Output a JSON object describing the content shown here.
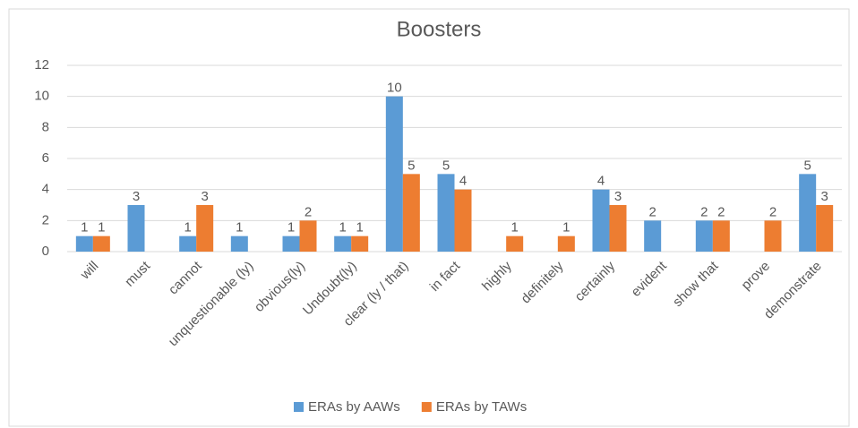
{
  "chart_data": {
    "type": "bar",
    "title": "Boosters",
    "categories": [
      "will",
      "must",
      "cannot",
      "unquestionable (ly)",
      "obvious(ly)",
      "Undoubt(ly)",
      "clear (ly / that)",
      "in fact",
      "highly",
      "definitely",
      "certainly",
      "evident",
      "show that",
      "prove",
      "demonstrate"
    ],
    "series": [
      {
        "name": "ERAs by AAWs",
        "color": "#5b9bd5",
        "values": [
          1,
          3,
          1,
          1,
          1,
          1,
          10,
          5,
          null,
          null,
          4,
          2,
          2,
          null,
          5
        ]
      },
      {
        "name": "ERAs by TAWs",
        "color": "#ed7d31",
        "values": [
          1,
          null,
          3,
          null,
          2,
          1,
          5,
          4,
          1,
          1,
          3,
          null,
          2,
          2,
          3
        ]
      }
    ],
    "ylim": [
      0,
      12
    ],
    "yticks": [
      0,
      2,
      4,
      6,
      8,
      10,
      12
    ],
    "grid": true,
    "legend": "bottom"
  }
}
